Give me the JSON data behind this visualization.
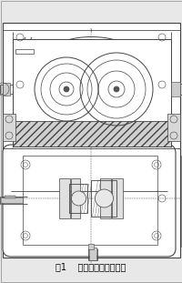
{
  "bg_color": "#e8e8e8",
  "line_color": "#444444",
  "caption": "图1    单级圆柱齿轮减速机",
  "caption_fontsize": 7.0,
  "figsize": [
    2.01,
    3.11
  ],
  "dpi": 100
}
